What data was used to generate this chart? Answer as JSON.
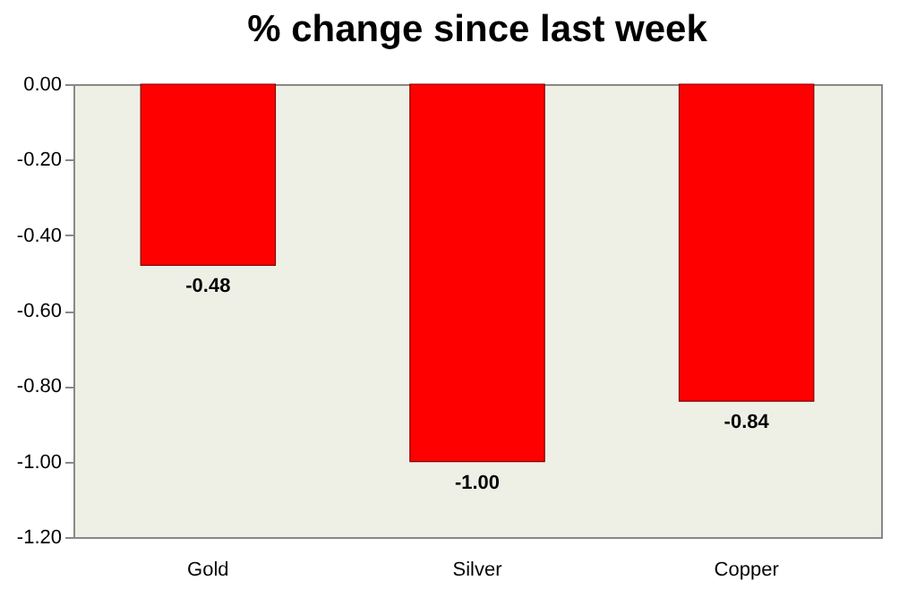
{
  "chart_data": {
    "type": "bar",
    "title": "% change since last week",
    "categories": [
      "Gold",
      "Silver",
      "Copper"
    ],
    "values": [
      -0.48,
      -1.0,
      -0.84
    ],
    "value_labels": [
      "-0.48",
      "-1.00",
      "-0.84"
    ],
    "color": "#ff0000",
    "ylim": [
      -1.2,
      0
    ],
    "yticks": [
      {
        "value": 0,
        "label": "0.00"
      },
      {
        "value": -0.2,
        "label": "-0.20"
      },
      {
        "value": -0.4,
        "label": "-0.40"
      },
      {
        "value": -0.6,
        "label": "-0.60"
      },
      {
        "value": -0.8,
        "label": "-0.80"
      },
      {
        "value": -1.0,
        "label": "-1.00"
      },
      {
        "value": -1.2,
        "label": "-1.20"
      }
    ],
    "grid": false
  }
}
